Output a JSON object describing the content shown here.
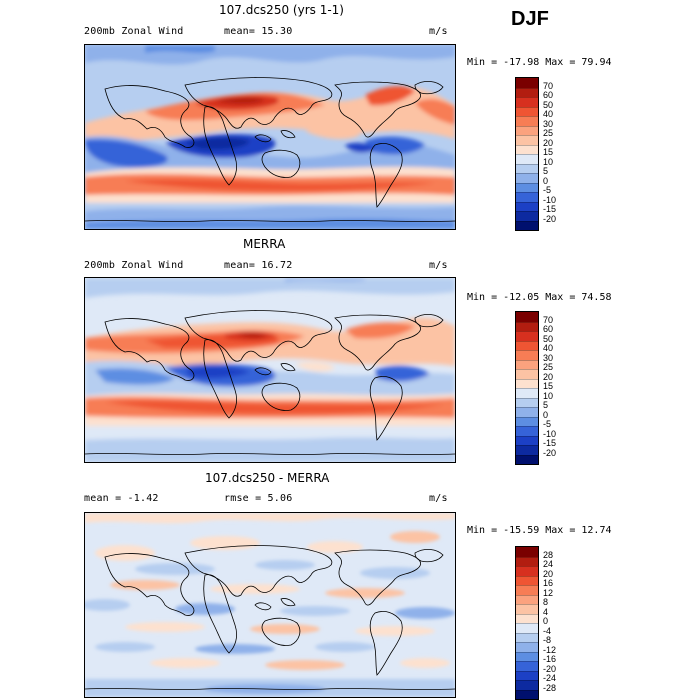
{
  "season": "DJF",
  "panels": [
    {
      "title": "107.dcs250 (yrs 1-1)",
      "left_text": "200mb Zonal Wind",
      "stat_text": "mean=  15.30",
      "units": "m/s",
      "minmax": "Min = -17.98 Max =  79.94",
      "colorbar": {
        "labels": [
          "70",
          "60",
          "50",
          "40",
          "30",
          "25",
          "20",
          "15",
          "10",
          "5",
          "0",
          "-5",
          "-10",
          "-15",
          "-20"
        ],
        "colors": [
          "#7a0000",
          "#b21d10",
          "#d7301f",
          "#ef5533",
          "#f77d55",
          "#fba27e",
          "#fcc3a4",
          "#fde1cf",
          "#dfe9f7",
          "#b6cef0",
          "#8fb1ea",
          "#5d8ee2",
          "#3663d8",
          "#1c40c5",
          "#0d2aa0",
          "#00106e"
        ]
      }
    },
    {
      "title": "MERRA",
      "left_text": "200mb Zonal Wind",
      "stat_text": "mean=  16.72",
      "units": "m/s",
      "minmax": "Min = -12.05 Max =  74.58",
      "colorbar": {
        "labels": [
          "70",
          "60",
          "50",
          "40",
          "30",
          "25",
          "20",
          "15",
          "10",
          "5",
          "0",
          "-5",
          "-10",
          "-15",
          "-20"
        ],
        "colors": [
          "#7a0000",
          "#b21d10",
          "#d7301f",
          "#ef5533",
          "#f77d55",
          "#fba27e",
          "#fcc3a4",
          "#fde1cf",
          "#dfe9f7",
          "#b6cef0",
          "#8fb1ea",
          "#5d8ee2",
          "#3663d8",
          "#1c40c5",
          "#0d2aa0",
          "#00106e"
        ]
      }
    },
    {
      "title": "107.dcs250 - MERRA",
      "left_text": "mean =  -1.42",
      "stat_text": "rmse =   5.06",
      "units": "m/s",
      "minmax": "Min = -15.59 Max =  12.74",
      "colorbar": {
        "labels": [
          "28",
          "24",
          "20",
          "16",
          "12",
          "8",
          "4",
          "0",
          "-4",
          "-8",
          "-12",
          "-16",
          "-20",
          "-24",
          "-28"
        ],
        "colors": [
          "#7a0000",
          "#b21d10",
          "#d7301f",
          "#ef5533",
          "#f77d55",
          "#fba27e",
          "#fcc3a4",
          "#fde1cf",
          "#dfe9f7",
          "#b6cef0",
          "#8fb1ea",
          "#5d8ee2",
          "#3663d8",
          "#1c40c5",
          "#0d2aa0",
          "#00106e"
        ]
      }
    }
  ]
}
